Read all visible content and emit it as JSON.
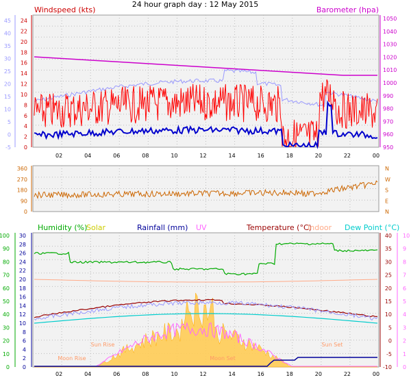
{
  "title": "24 hour graph day : 12 May 2015",
  "colors": {
    "windspeed": "#ff0000",
    "windavg": "#0000cc",
    "temp_panel_outside": "#9999ff",
    "barometer": "#cc00cc",
    "direction": "#cc6600",
    "humidity": "#00aa00",
    "solar": "#cccc00",
    "rainfall": "#000099",
    "uv": "#ff66ff",
    "temperature": "#990000",
    "indoor": "#ffaa88",
    "dewpoint": "#00cccc"
  },
  "time_axis": [
    "02",
    "04",
    "06",
    "08",
    "10",
    "12",
    "14",
    "16",
    "18",
    "20",
    "22",
    "00"
  ],
  "panel_wind": {
    "left_label": "Windspeed (kts)",
    "right_label": "Barometer (hpa)",
    "left_ticks": [
      "24",
      "22",
      "20",
      "18",
      "16",
      "14",
      "12",
      "10",
      "8",
      "6",
      "4",
      "2",
      "0"
    ],
    "outer_ticks": [
      "45",
      "40",
      "35",
      "30",
      "25",
      "20",
      "15",
      "10",
      "5",
      "0",
      "-5"
    ],
    "right_ticks": [
      "1050",
      "1040",
      "1030",
      "1020",
      "1010",
      "1000",
      "990",
      "980",
      "970",
      "960",
      "950"
    ]
  },
  "panel_dir": {
    "left_ticks": [
      "360",
      "270",
      "180",
      "90",
      "0"
    ],
    "right_ticks": [
      "N",
      "W",
      "S",
      "E",
      "N"
    ]
  },
  "panel_main": {
    "labels": {
      "humidity": "Humidity (%)",
      "solar": "Solar",
      "rainfall": "Rainfall (mm)",
      "uv": "UV",
      "temperature": "Temperature (°C)",
      "indoor": "Indoor",
      "dewpoint": "Dew Point (°C)"
    },
    "humidity_ticks": [
      "100",
      "90",
      "80",
      "70",
      "60",
      "50",
      "40",
      "30",
      "20",
      "10",
      "0"
    ],
    "rain_ticks": [
      "30",
      "28",
      "26",
      "24",
      "22",
      "20",
      "18",
      "16",
      "14",
      "12",
      "10",
      "8",
      "6",
      "4",
      "2",
      "0"
    ],
    "temp_ticks": [
      "40",
      "35",
      "30",
      "25",
      "20",
      "15",
      "10",
      "5",
      "0",
      "-5",
      "-10"
    ],
    "uv_ticks": [
      "10",
      "9",
      "8",
      "7",
      "6",
      "5",
      "4",
      "3",
      "2",
      "1",
      "0"
    ],
    "annotations": [
      "Sun Rise",
      "Moon Rise",
      "Moon Set",
      "Sun Set"
    ]
  }
}
